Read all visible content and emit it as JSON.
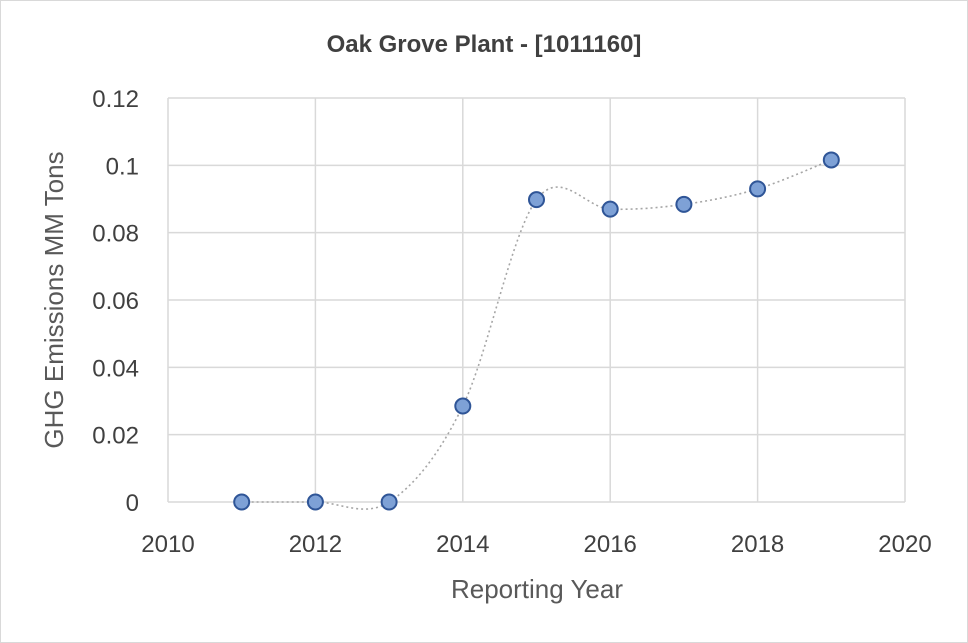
{
  "chart_data": {
    "type": "scatter",
    "title": "Oak Grove Plant - [1011160]",
    "xlabel": "Reporting Year",
    "ylabel": "GHG Emissions MM Tons",
    "xlim": [
      2010,
      2020
    ],
    "ylim": [
      0,
      0.12
    ],
    "x_ticks": [
      "2010",
      "2012",
      "2014",
      "2016",
      "2018",
      "2020"
    ],
    "y_ticks": [
      "0",
      "0.02",
      "0.04",
      "0.06",
      "0.08",
      "0.1",
      "0.12"
    ],
    "grid": true,
    "smoothed_line": true,
    "series": [
      {
        "x": [
          2011,
          2012,
          2013,
          2014,
          2015,
          2016,
          2017,
          2018,
          2019
        ],
        "y": [
          0,
          0,
          0,
          0.0285,
          0.0898,
          0.087,
          0.0884,
          0.093,
          0.1016
        ]
      }
    ],
    "colors": {
      "marker_fill": "#7ea1d6",
      "marker_edge": "#2f5597",
      "line": "#a6a6a6"
    }
  }
}
